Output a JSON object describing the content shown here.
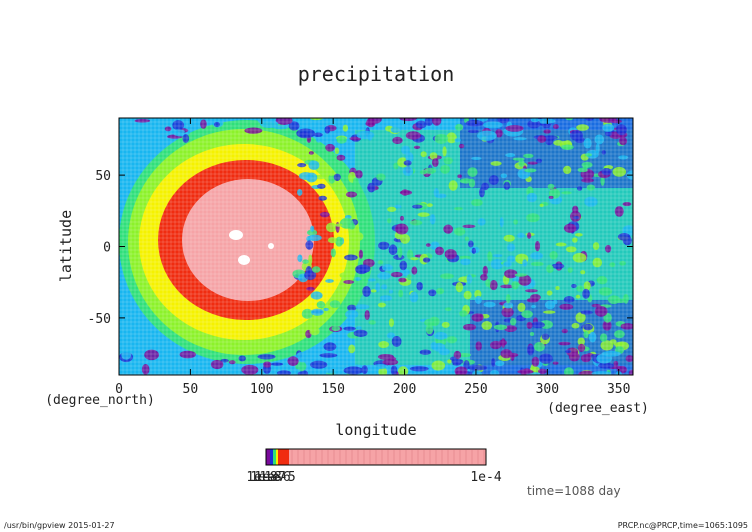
{
  "chart_data": {
    "type": "heatmap",
    "title": "precipitation",
    "xlabel": "longitude",
    "ylabel": "latitude",
    "x_unit": "(degree_east)",
    "y_unit": "(degree_north)",
    "xlim": [
      0,
      360
    ],
    "ylim": [
      -90,
      90
    ],
    "xticks": [
      0,
      50,
      100,
      150,
      200,
      250,
      300,
      350
    ],
    "yticks": [
      -50,
      0,
      50
    ],
    "time_label": "time=1088 day",
    "colorbar": {
      "tick_labels": [
        "1e-8",
        "1e-7",
        "1e-6",
        "1e-5",
        "1e-4"
      ],
      "overlap_left_label": "1e-8",
      "right_label": "1e-4"
    },
    "levels": [
      {
        "color": "#7a0a9a"
      },
      {
        "color": "#1a2fd6"
      },
      {
        "color": "#18b6f0"
      },
      {
        "color": "#2fe07a"
      },
      {
        "color": "#8cf22a"
      },
      {
        "color": "#f5f200"
      },
      {
        "color": "#f02c10"
      },
      {
        "color": "#f6a3a6"
      }
    ],
    "field_description": "maximum precipitation centered near longitude 90, latitude 0; decreasing outward in rings"
  },
  "footer": {
    "left": "/usr/bin/gpview  2015-01-27",
    "right": "PRCP.nc@PRCP,time=1065:1095"
  }
}
